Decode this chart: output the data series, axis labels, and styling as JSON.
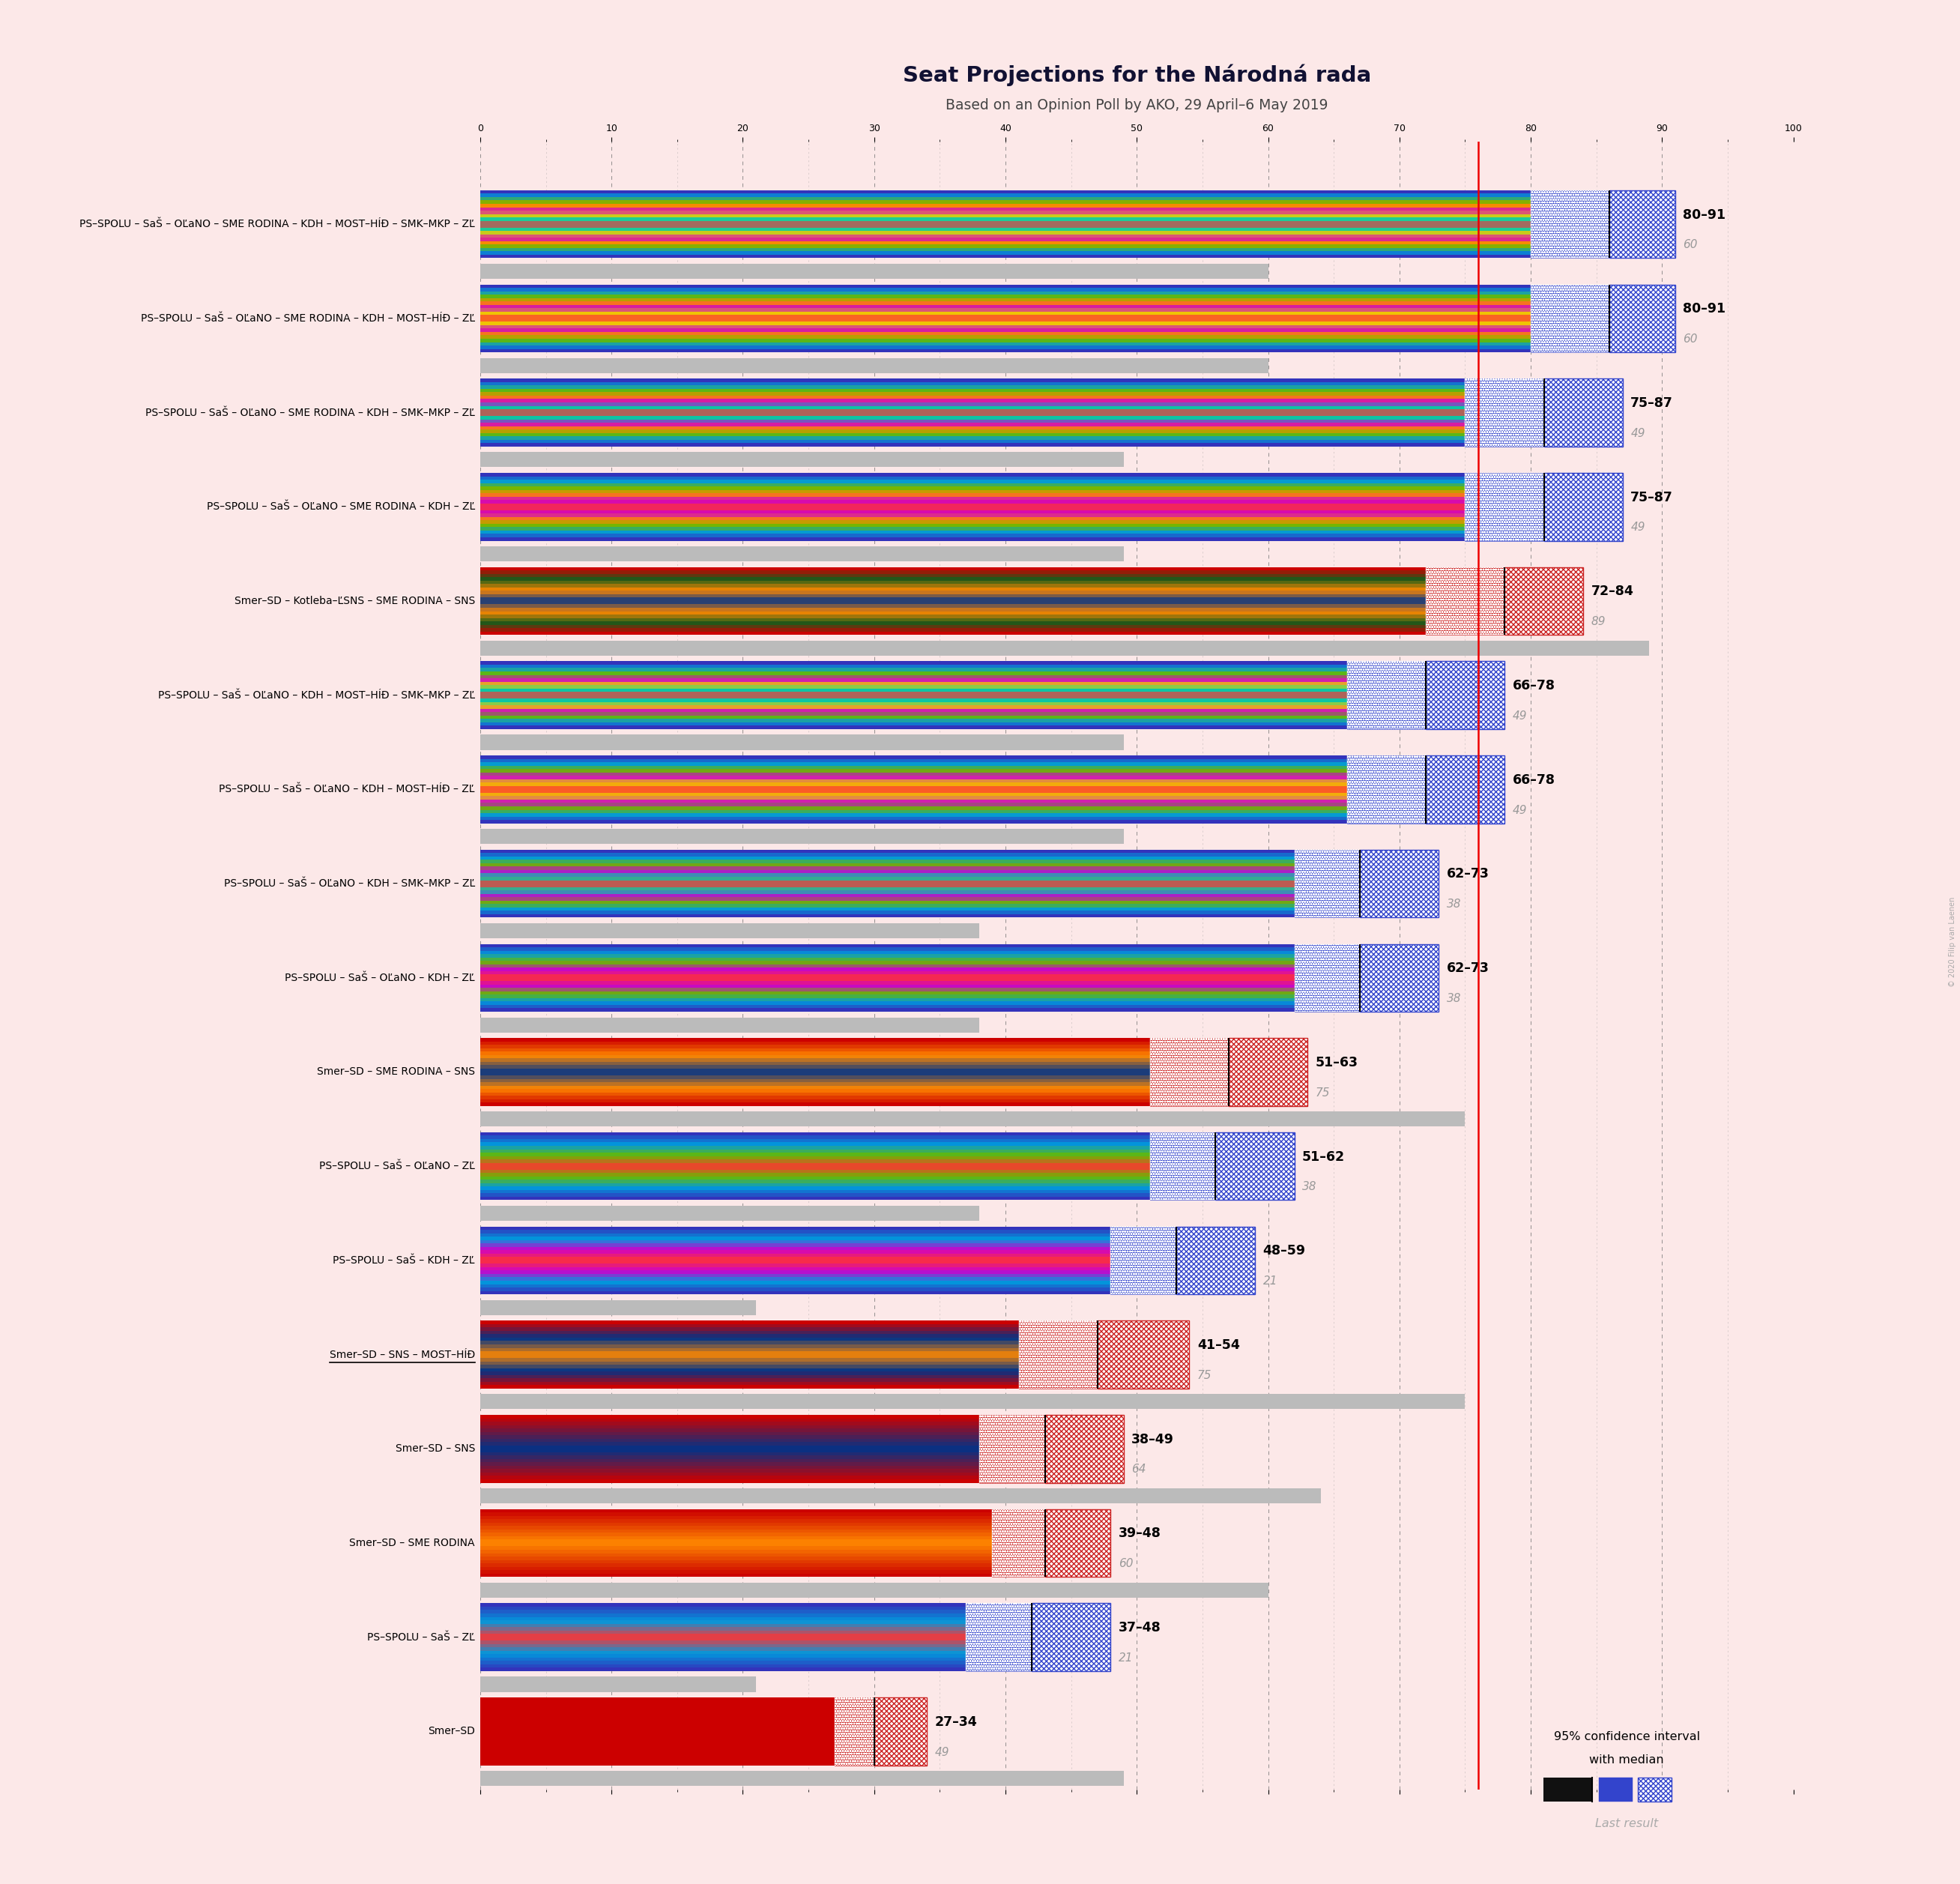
{
  "title": "Seat Projections for the Národná rada",
  "subtitle": "Based on an Opinion Poll by AKO, 29 April–6 May 2019",
  "background_color": "#fce8e8",
  "majority_line": 76,
  "coalitions": [
    {
      "label": "PS–SPOLU – SaŠ – OĽaNO – SME RODINA – KDH – MOST–HÍĐ – SMK–MKP – ZĽ",
      "underline": false,
      "ci_low": 80,
      "ci_high": 91,
      "median": 86,
      "last_result": 60,
      "type": "opposition",
      "party_colors": [
        "#3333bb",
        "#0099dd",
        "#66bb00",
        "#ff8800",
        "#cc00cc",
        "#eecc00",
        "#00ccaa",
        "#ff3333"
      ]
    },
    {
      "label": "PS–SPOLU – SaŠ – OĽaNO – SME RODINA – KDH – MOST–HÍĐ – ZĽ",
      "underline": false,
      "ci_low": 80,
      "ci_high": 91,
      "median": 86,
      "last_result": 60,
      "type": "opposition",
      "party_colors": [
        "#3333bb",
        "#0099dd",
        "#66bb00",
        "#ff8800",
        "#cc00cc",
        "#eecc00",
        "#ff3333"
      ]
    },
    {
      "label": "PS–SPOLU – SaŠ – OĽaNO – SME RODINA – KDH – SMK–MKP – ZĽ",
      "underline": false,
      "ci_low": 75,
      "ci_high": 87,
      "median": 81,
      "last_result": 49,
      "type": "opposition",
      "party_colors": [
        "#3333bb",
        "#0099dd",
        "#66bb00",
        "#ff8800",
        "#cc00cc",
        "#00ccaa",
        "#ff3333"
      ]
    },
    {
      "label": "PS–SPOLU – SaŠ – OĽaNO – SME RODINA – KDH – ZĽ",
      "underline": false,
      "ci_low": 75,
      "ci_high": 87,
      "median": 81,
      "last_result": 49,
      "type": "opposition",
      "party_colors": [
        "#3333bb",
        "#0099dd",
        "#66bb00",
        "#ff8800",
        "#cc00cc",
        "#ff3333"
      ]
    },
    {
      "label": "Smer–SD – Kotleba–ĽSNS – SME RODINA – SNS",
      "underline": false,
      "ci_low": 72,
      "ci_high": 84,
      "median": 78,
      "last_result": 89,
      "type": "governing",
      "party_colors": [
        "#cc0000",
        "#1a5c1a",
        "#ff8800",
        "#003388"
      ]
    },
    {
      "label": "PS–SPOLU – SaŠ – OĽaNO – KDH – MOST–HÍĐ – SMK–MKP – ZĽ",
      "underline": false,
      "ci_low": 66,
      "ci_high": 78,
      "median": 72,
      "last_result": 49,
      "type": "opposition",
      "party_colors": [
        "#3333bb",
        "#0099dd",
        "#66bb00",
        "#cc00cc",
        "#eecc00",
        "#00ccaa",
        "#ff3333"
      ]
    },
    {
      "label": "PS–SPOLU – SaŠ – OĽaNO – KDH – MOST–HÍĐ – ZĽ",
      "underline": false,
      "ci_low": 66,
      "ci_high": 78,
      "median": 72,
      "last_result": 49,
      "type": "opposition",
      "party_colors": [
        "#3333bb",
        "#0099dd",
        "#66bb00",
        "#cc00cc",
        "#eecc00",
        "#ff3333"
      ]
    },
    {
      "label": "PS–SPOLU – SaŠ – OĽaNO – KDH – SMK–MKP – ZĽ",
      "underline": false,
      "ci_low": 62,
      "ci_high": 73,
      "median": 67,
      "last_result": 38,
      "type": "opposition",
      "party_colors": [
        "#3333bb",
        "#0099dd",
        "#66bb00",
        "#cc00cc",
        "#00ccaa",
        "#ff3333"
      ]
    },
    {
      "label": "PS–SPOLU – SaŠ – OĽaNO – KDH – ZĽ",
      "underline": false,
      "ci_low": 62,
      "ci_high": 73,
      "median": 67,
      "last_result": 38,
      "type": "opposition",
      "party_colors": [
        "#3333bb",
        "#0099dd",
        "#66bb00",
        "#cc00cc",
        "#ff3333"
      ]
    },
    {
      "label": "Smer–SD – SME RODINA – SNS",
      "underline": false,
      "ci_low": 51,
      "ci_high": 63,
      "median": 57,
      "last_result": 75,
      "type": "governing",
      "party_colors": [
        "#cc0000",
        "#ff8800",
        "#003388"
      ]
    },
    {
      "label": "PS–SPOLU – SaŠ – OĽaNO – ZĽ",
      "underline": false,
      "ci_low": 51,
      "ci_high": 62,
      "median": 56,
      "last_result": 38,
      "type": "opposition",
      "party_colors": [
        "#3333bb",
        "#0099dd",
        "#66bb00",
        "#ff3333"
      ]
    },
    {
      "label": "PS–SPOLU – SaŠ – KDH – ZĽ",
      "underline": false,
      "ci_low": 48,
      "ci_high": 59,
      "median": 53,
      "last_result": 21,
      "type": "opposition",
      "party_colors": [
        "#3333bb",
        "#0099dd",
        "#cc00cc",
        "#ff3333"
      ]
    },
    {
      "label": "Smer–SD – SNS – MOST–HÍĐ",
      "underline": true,
      "ci_low": 41,
      "ci_high": 54,
      "median": 47,
      "last_result": 75,
      "type": "governing",
      "party_colors": [
        "#cc0000",
        "#003388",
        "#ff8800"
      ]
    },
    {
      "label": "Smer–SD – SNS",
      "underline": false,
      "ci_low": 38,
      "ci_high": 49,
      "median": 43,
      "last_result": 64,
      "type": "governing",
      "party_colors": [
        "#cc0000",
        "#003388"
      ]
    },
    {
      "label": "Smer–SD – SME RODINA",
      "underline": false,
      "ci_low": 39,
      "ci_high": 48,
      "median": 43,
      "last_result": 60,
      "type": "governing",
      "party_colors": [
        "#cc0000",
        "#ff8800"
      ]
    },
    {
      "label": "PS–SPOLU – SaŠ – ZĽ",
      "underline": false,
      "ci_low": 37,
      "ci_high": 48,
      "median": 42,
      "last_result": 21,
      "type": "opposition",
      "party_colors": [
        "#3333bb",
        "#0099dd",
        "#ff3333"
      ]
    },
    {
      "label": "Smer–SD",
      "underline": false,
      "ci_low": 27,
      "ci_high": 34,
      "median": 30,
      "last_result": 49,
      "type": "governing",
      "party_colors": [
        "#cc0000"
      ]
    }
  ]
}
